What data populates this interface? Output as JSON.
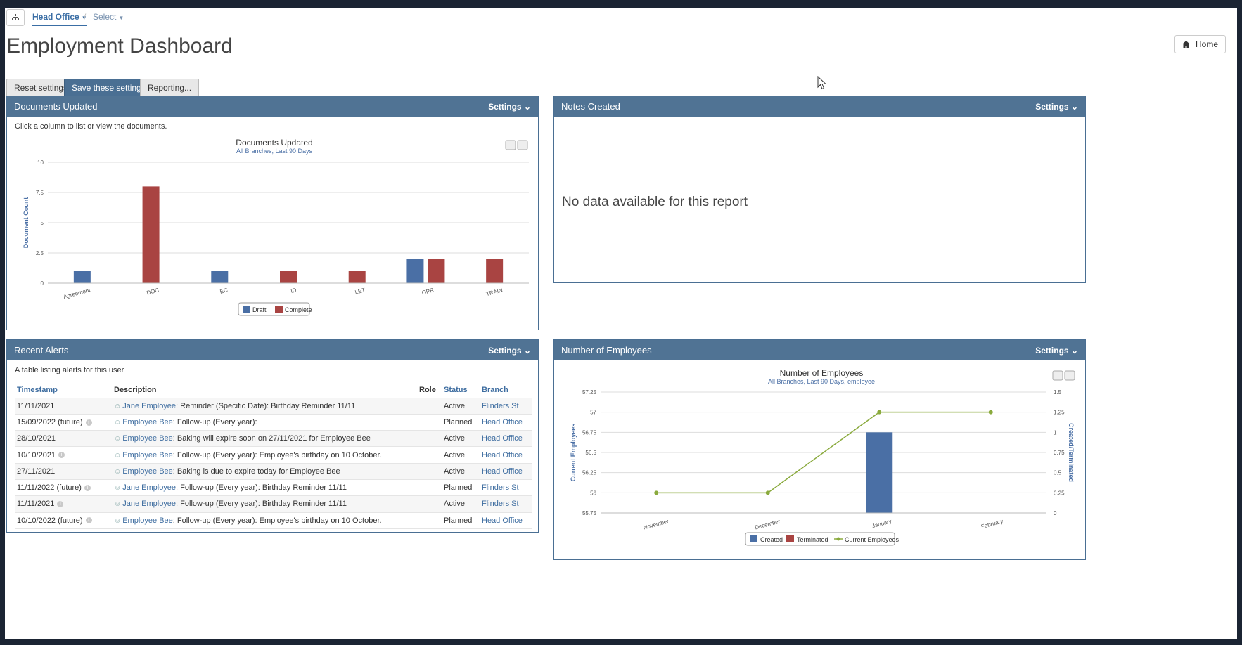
{
  "nav": {
    "head_office": "Head Office",
    "separator": "/",
    "select": "Select"
  },
  "page": {
    "title": "Employment Dashboard",
    "home": "Home"
  },
  "toolbar": {
    "reset": "Reset settings",
    "save": "Save these settings",
    "reporting": "Reporting..."
  },
  "panels": {
    "documents": {
      "title": "Documents Updated",
      "settings": "Settings",
      "hint": "Click a column to list or view the documents."
    },
    "notes": {
      "title": "Notes Created",
      "settings": "Settings",
      "empty": "No data available for this report"
    },
    "alerts": {
      "title": "Recent Alerts",
      "settings": "Settings",
      "hint": "A table listing alerts for this user",
      "columns": [
        "Timestamp",
        "Description",
        "Role",
        "Status",
        "Branch"
      ],
      "rows": [
        {
          "timestamp": "11/11/2021",
          "info": false,
          "person": "Jane Employee",
          "desc": ": Reminder (Specific Date): Birthday Reminder 11/11",
          "role": "",
          "status": "Active",
          "branch": "Flinders St"
        },
        {
          "timestamp": "15/09/2022 (future)",
          "info": true,
          "person": "Employee Bee",
          "desc": ": Follow-up (Every year):",
          "role": "",
          "status": "Planned",
          "branch": "Head Office"
        },
        {
          "timestamp": "28/10/2021",
          "info": false,
          "person": "Employee Bee",
          "desc": ": Baking will expire soon on 27/11/2021 for Employee Bee",
          "role": "",
          "status": "Active",
          "branch": "Head Office"
        },
        {
          "timestamp": "10/10/2021",
          "info": true,
          "person": "Employee Bee",
          "desc": ": Follow-up (Every year): Employee's birthday on 10 October.",
          "role": "",
          "status": "Active",
          "branch": "Head Office"
        },
        {
          "timestamp": "27/11/2021",
          "info": false,
          "person": "Employee Bee",
          "desc": ": Baking is due to expire today for Employee Bee",
          "role": "",
          "status": "Active",
          "branch": "Head Office"
        },
        {
          "timestamp": "11/11/2022 (future)",
          "info": true,
          "person": "Jane Employee",
          "desc": ": Follow-up (Every year): Birthday Reminder 11/11",
          "role": "",
          "status": "Planned",
          "branch": "Flinders St"
        },
        {
          "timestamp": "11/11/2021",
          "info": true,
          "person": "Jane Employee",
          "desc": ": Follow-up (Every year): Birthday Reminder 11/11",
          "role": "",
          "status": "Active",
          "branch": "Flinders St"
        },
        {
          "timestamp": "10/10/2022 (future)",
          "info": true,
          "person": "Employee Bee",
          "desc": ": Follow-up (Every year): Employee's birthday on 10 October.",
          "role": "",
          "status": "Planned",
          "branch": "Head Office"
        }
      ]
    },
    "employees": {
      "title": "Number of Employees",
      "settings": "Settings"
    }
  },
  "chart_data": [
    {
      "type": "bar",
      "title": "Documents Updated",
      "subtitle": "All Branches, Last 90 Days",
      "xlabel": "",
      "ylabel": "Document Count",
      "ylim": [
        0,
        10
      ],
      "yticks": [
        "0",
        "2.5",
        "5",
        "7.5",
        "10"
      ],
      "categories": [
        "Agreement",
        "DOC",
        "EC",
        "ID",
        "LET",
        "OPR",
        "TRAIN"
      ],
      "series": [
        {
          "name": "Draft",
          "color": "#4a6fa5",
          "values": [
            1,
            0,
            1,
            0,
            0,
            2,
            0
          ]
        },
        {
          "name": "Complete",
          "color": "#a94442",
          "values": [
            0,
            8,
            0,
            1,
            1,
            2,
            2
          ]
        }
      ],
      "legend": "bottom"
    },
    {
      "type": "bar+line",
      "title": "Number of Employees",
      "subtitle": "All Branches, Last 90 Days, employee",
      "categories": [
        "November",
        "December",
        "January",
        "February"
      ],
      "ylabel_left": "Current Employees",
      "ylabel_right": "Created/Terminated",
      "ylim_left": [
        55.75,
        57.25
      ],
      "yticks_left": [
        "55.75",
        "56",
        "56.25",
        "56.5",
        "56.75",
        "57",
        "57.25"
      ],
      "ylim_right": [
        0,
        1.5
      ],
      "yticks_right": [
        "0",
        "0.25",
        "0.5",
        "0.75",
        "1",
        "1.25",
        "1.5"
      ],
      "series": [
        {
          "name": "Created",
          "color": "#4a6fa5",
          "axis": "right",
          "values": [
            0,
            0,
            1,
            0
          ]
        },
        {
          "name": "Terminated",
          "color": "#a94442",
          "axis": "right",
          "values": [
            0,
            0,
            0,
            0
          ]
        },
        {
          "name": "Current Employees",
          "color": "#8aaa3d",
          "axis": "left",
          "type": "line",
          "values": [
            56,
            56,
            57,
            57
          ]
        }
      ],
      "legend": "bottom"
    }
  ]
}
